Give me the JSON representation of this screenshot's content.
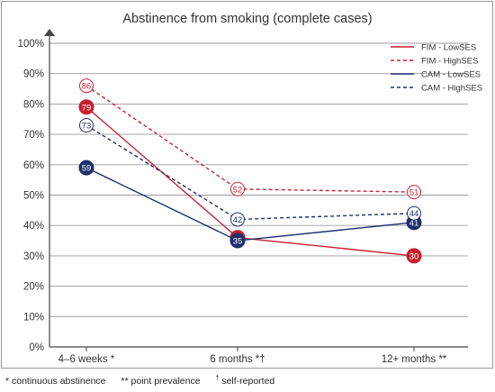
{
  "chart_data": {
    "type": "line",
    "title": "Abstinence from smoking (complete cases)",
    "categories": [
      "4–6 weeks *",
      "6 months *†",
      "12+ months **"
    ],
    "yticks": [
      "0%",
      "10%",
      "20%",
      "30%",
      "40%",
      "50%",
      "60%",
      "70%",
      "80%",
      "90%",
      "100%"
    ],
    "ylim": [
      0,
      100
    ],
    "grid": true,
    "legend_position": "top-right",
    "series": [
      {
        "name": "FIM - LowSES",
        "values": [
          79,
          36,
          30
        ],
        "color": "#c8202f",
        "dashed": false,
        "filled": true
      },
      {
        "name": "FIM - HighSES",
        "values": [
          86,
          52,
          51
        ],
        "color": "#c8202f",
        "dashed": true,
        "filled": false
      },
      {
        "name": "CAM - LowSES",
        "values": [
          59,
          35,
          41
        ],
        "color": "#1f2f6b",
        "dashed": false,
        "filled": true
      },
      {
        "name": "CAM - HighSES",
        "values": [
          73,
          42,
          44
        ],
        "color": "#1f2f6b",
        "dashed": true,
        "filled": false
      }
    ]
  },
  "footnotes": {
    "continuous": "* continuous abstinence",
    "point": "** point prevalence",
    "self_symbol": "†",
    "self_text": " self-reported"
  }
}
